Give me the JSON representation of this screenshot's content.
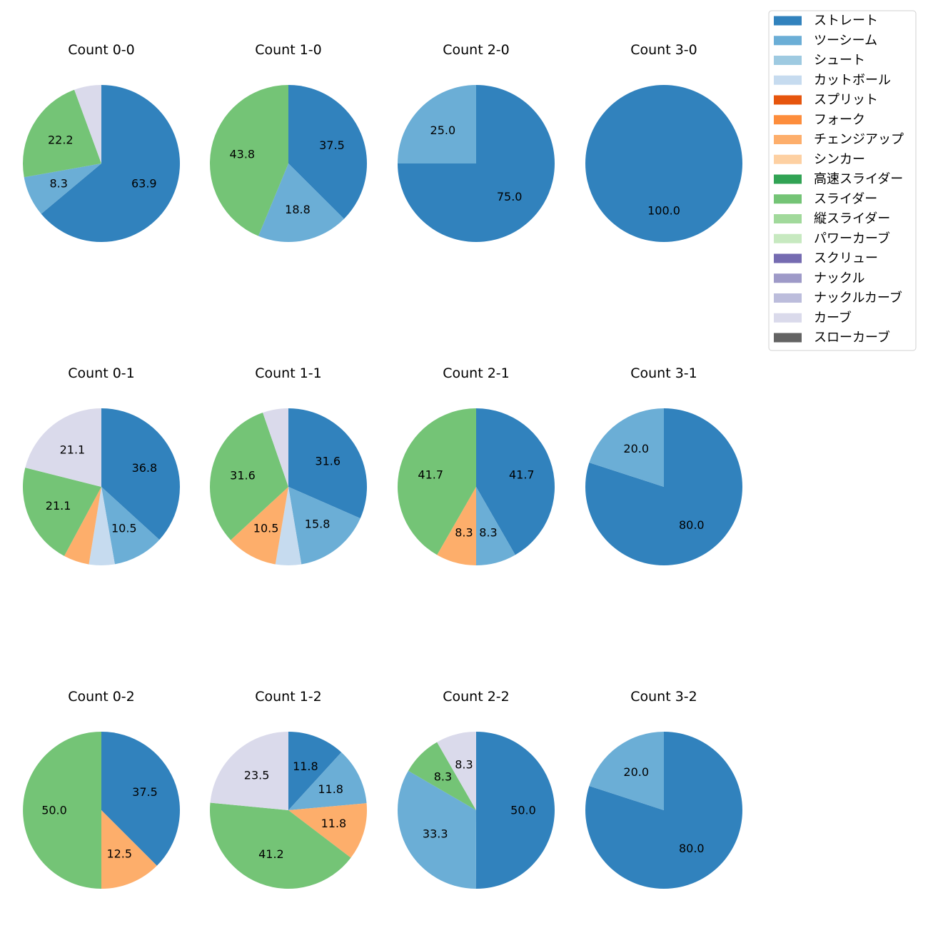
{
  "chart_data": {
    "type": "pie",
    "start_angle_deg": 90,
    "direction": "clockwise",
    "legend": {
      "placement": "top-right",
      "entries": [
        {
          "name": "ストレート",
          "color": "#3182bd"
        },
        {
          "name": "ツーシーム",
          "color": "#6baed6"
        },
        {
          "name": "シュート",
          "color": "#9ecae1"
        },
        {
          "name": "カットボール",
          "color": "#c6dbef"
        },
        {
          "name": "スプリット",
          "color": "#e6550d"
        },
        {
          "name": "フォーク",
          "color": "#fd8d3c"
        },
        {
          "name": "チェンジアップ",
          "color": "#fdae6b"
        },
        {
          "name": "シンカー",
          "color": "#fdd0a2"
        },
        {
          "name": "高速スライダー",
          "color": "#31a354"
        },
        {
          "name": "スライダー",
          "color": "#74c476"
        },
        {
          "name": "縦スライダー",
          "color": "#a1d99b"
        },
        {
          "name": "パワーカーブ",
          "color": "#c7e9c0"
        },
        {
          "name": "スクリュー",
          "color": "#756bb1"
        },
        {
          "name": "ナックル",
          "color": "#9e9ac8"
        },
        {
          "name": "ナックルカーブ",
          "color": "#bcbddc"
        },
        {
          "name": "カーブ",
          "color": "#dadaeb"
        },
        {
          "name": "スローカーブ",
          "color": "#636363"
        }
      ]
    },
    "charts": [
      {
        "title": "Count 0-0",
        "slices": [
          {
            "pitch": "ストレート",
            "value": 63.9,
            "label": "63.9"
          },
          {
            "pitch": "ツーシーム",
            "value": 8.3,
            "label": "8.3"
          },
          {
            "pitch": "スライダー",
            "value": 22.2,
            "label": "22.2"
          },
          {
            "pitch": "カーブ",
            "value": 5.6,
            "label": ""
          }
        ]
      },
      {
        "title": "Count 1-0",
        "slices": [
          {
            "pitch": "ストレート",
            "value": 37.5,
            "label": "37.5"
          },
          {
            "pitch": "ツーシーム",
            "value": 18.8,
            "label": "18.8"
          },
          {
            "pitch": "スライダー",
            "value": 43.8,
            "label": "43.8"
          }
        ]
      },
      {
        "title": "Count 2-0",
        "slices": [
          {
            "pitch": "ストレート",
            "value": 75.0,
            "label": "75.0"
          },
          {
            "pitch": "ツーシーム",
            "value": 25.0,
            "label": "25.0"
          }
        ]
      },
      {
        "title": "Count 3-0",
        "slices": [
          {
            "pitch": "ストレート",
            "value": 100.0,
            "label": "100.0"
          }
        ]
      },
      {
        "title": "Count 0-1",
        "slices": [
          {
            "pitch": "ストレート",
            "value": 36.8,
            "label": "36.8"
          },
          {
            "pitch": "ツーシーム",
            "value": 10.5,
            "label": "10.5"
          },
          {
            "pitch": "カットボール",
            "value": 5.3,
            "label": ""
          },
          {
            "pitch": "チェンジアップ",
            "value": 5.3,
            "label": ""
          },
          {
            "pitch": "スライダー",
            "value": 21.1,
            "label": "21.1"
          },
          {
            "pitch": "カーブ",
            "value": 21.1,
            "label": "21.1"
          }
        ]
      },
      {
        "title": "Count 1-1",
        "slices": [
          {
            "pitch": "ストレート",
            "value": 31.6,
            "label": "31.6"
          },
          {
            "pitch": "ツーシーム",
            "value": 15.8,
            "label": "15.8"
          },
          {
            "pitch": "カットボール",
            "value": 5.3,
            "label": ""
          },
          {
            "pitch": "チェンジアップ",
            "value": 10.5,
            "label": "10.5"
          },
          {
            "pitch": "スライダー",
            "value": 31.6,
            "label": "31.6"
          },
          {
            "pitch": "カーブ",
            "value": 5.3,
            "label": ""
          }
        ]
      },
      {
        "title": "Count 2-1",
        "slices": [
          {
            "pitch": "ストレート",
            "value": 41.7,
            "label": "41.7"
          },
          {
            "pitch": "ツーシーム",
            "value": 8.3,
            "label": "8.3"
          },
          {
            "pitch": "チェンジアップ",
            "value": 8.3,
            "label": "8.3"
          },
          {
            "pitch": "スライダー",
            "value": 41.7,
            "label": "41.7"
          }
        ]
      },
      {
        "title": "Count 3-1",
        "slices": [
          {
            "pitch": "ストレート",
            "value": 80.0,
            "label": "80.0"
          },
          {
            "pitch": "ツーシーム",
            "value": 20.0,
            "label": "20.0"
          }
        ]
      },
      {
        "title": "Count 0-2",
        "slices": [
          {
            "pitch": "ストレート",
            "value": 37.5,
            "label": "37.5"
          },
          {
            "pitch": "チェンジアップ",
            "value": 12.5,
            "label": "12.5"
          },
          {
            "pitch": "スライダー",
            "value": 50.0,
            "label": "50.0"
          }
        ]
      },
      {
        "title": "Count 1-2",
        "slices": [
          {
            "pitch": "ストレート",
            "value": 11.8,
            "label": "11.8"
          },
          {
            "pitch": "ツーシーム",
            "value": 11.8,
            "label": "11.8"
          },
          {
            "pitch": "チェンジアップ",
            "value": 11.8,
            "label": "11.8"
          },
          {
            "pitch": "スライダー",
            "value": 41.2,
            "label": "41.2"
          },
          {
            "pitch": "カーブ",
            "value": 23.5,
            "label": "23.5"
          }
        ]
      },
      {
        "title": "Count 2-2",
        "slices": [
          {
            "pitch": "ストレート",
            "value": 50.0,
            "label": "50.0"
          },
          {
            "pitch": "ツーシーム",
            "value": 33.3,
            "label": "33.3"
          },
          {
            "pitch": "スライダー",
            "value": 8.3,
            "label": "8.3"
          },
          {
            "pitch": "カーブ",
            "value": 8.3,
            "label": "8.3"
          }
        ]
      },
      {
        "title": "Count 3-2",
        "slices": [
          {
            "pitch": "ストレート",
            "value": 80.0,
            "label": "80.0"
          },
          {
            "pitch": "ツーシーム",
            "value": 20.0,
            "label": "20.0"
          }
        ]
      }
    ]
  }
}
